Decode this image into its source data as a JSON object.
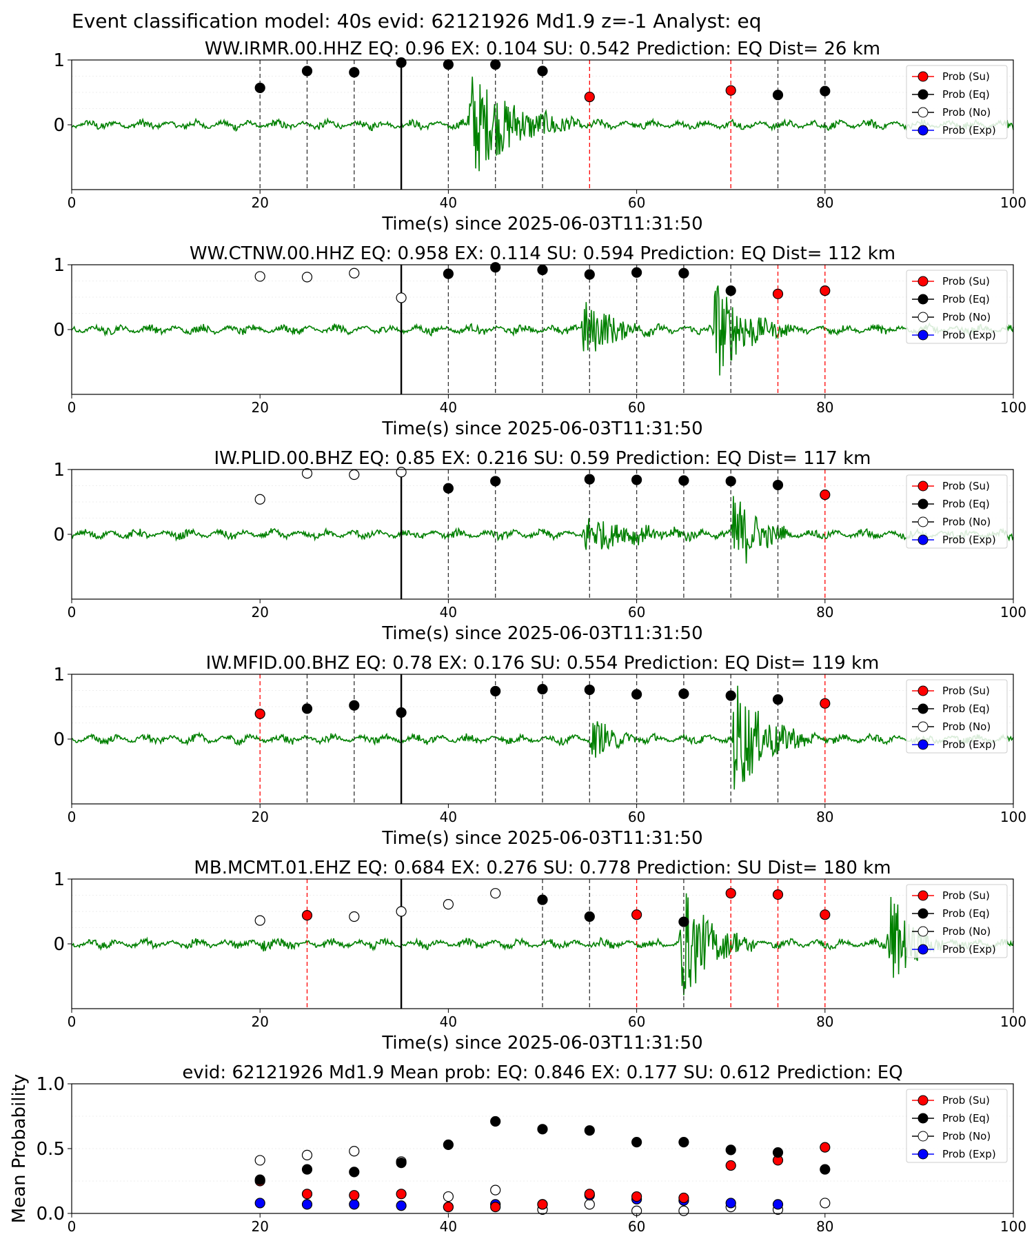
{
  "suptitle": "Event classification model: 40s evid: 62121926 Md1.9 z=-1 Analyst: eq",
  "legend_labels": [
    "Prob (Su)",
    "Prob (Eq)",
    "Prob (No)",
    "Prob (Exp)"
  ],
  "colors": {
    "su": "#ff0000",
    "eq": "#000000",
    "no": "#ffffff",
    "exp": "#0000ff",
    "waveform": "#008000",
    "grid": "#dddddd"
  },
  "chart_data": [
    {
      "type": "scatter",
      "title": "WW.IRMR.00.HHZ   EQ: 0.96  EX: 0.104  SU: 0.542   Prediction: EQ    Dist= 26 km",
      "xlabel": "Time(s) since 2025-06-03T11:31:50",
      "xlim": [
        0,
        100
      ],
      "ylim": [
        -1,
        1
      ],
      "xticks": [
        "0",
        "20",
        "40",
        "60",
        "80",
        "100"
      ],
      "yticks": [
        "1",
        "0"
      ],
      "reference_line_x": 35,
      "waveform_bursts": [
        {
          "t": 42,
          "amp": 0.95,
          "dur": 12
        }
      ],
      "points": [
        {
          "x": 20,
          "y": 0.57,
          "cls": "eq"
        },
        {
          "x": 25,
          "y": 0.83,
          "cls": "eq"
        },
        {
          "x": 30,
          "y": 0.81,
          "cls": "eq"
        },
        {
          "x": 35,
          "y": 0.96,
          "cls": "eq"
        },
        {
          "x": 40,
          "y": 0.93,
          "cls": "eq"
        },
        {
          "x": 45,
          "y": 0.93,
          "cls": "eq"
        },
        {
          "x": 50,
          "y": 0.83,
          "cls": "eq"
        },
        {
          "x": 55,
          "y": 0.43,
          "cls": "su"
        },
        {
          "x": 70,
          "y": 0.53,
          "cls": "su"
        },
        {
          "x": 75,
          "y": 0.46,
          "cls": "eq"
        },
        {
          "x": 80,
          "y": 0.52,
          "cls": "eq"
        }
      ]
    },
    {
      "type": "scatter",
      "title": "WW.CTNW.00.HHZ   EQ: 0.958  EX: 0.114  SU: 0.594   Prediction: EQ    Dist= 112 km",
      "xlabel": "Time(s) since 2025-06-03T11:31:50",
      "xlim": [
        0,
        100
      ],
      "ylim": [
        -1,
        1
      ],
      "xticks": [
        "0",
        "20",
        "40",
        "60",
        "80",
        "100"
      ],
      "yticks": [
        "1",
        "0"
      ],
      "reference_line_x": 35,
      "waveform_bursts": [
        {
          "t": 54,
          "amp": 0.55,
          "dur": 8
        },
        {
          "t": 68,
          "amp": 0.95,
          "dur": 8
        }
      ],
      "points": [
        {
          "x": 20,
          "y": 0.82,
          "cls": "no"
        },
        {
          "x": 25,
          "y": 0.81,
          "cls": "no"
        },
        {
          "x": 30,
          "y": 0.87,
          "cls": "no"
        },
        {
          "x": 35,
          "y": 0.49,
          "cls": "no"
        },
        {
          "x": 40,
          "y": 0.86,
          "cls": "eq"
        },
        {
          "x": 45,
          "y": 0.96,
          "cls": "eq"
        },
        {
          "x": 50,
          "y": 0.92,
          "cls": "eq"
        },
        {
          "x": 55,
          "y": 0.85,
          "cls": "eq"
        },
        {
          "x": 60,
          "y": 0.88,
          "cls": "eq"
        },
        {
          "x": 65,
          "y": 0.87,
          "cls": "eq"
        },
        {
          "x": 70,
          "y": 0.6,
          "cls": "eq"
        },
        {
          "x": 75,
          "y": 0.55,
          "cls": "su"
        },
        {
          "x": 80,
          "y": 0.6,
          "cls": "su"
        }
      ]
    },
    {
      "type": "scatter",
      "title": "IW.PLID.00.BHZ   EQ: 0.85  EX: 0.216  SU: 0.59   Prediction: EQ    Dist= 117 km",
      "xlabel": "Time(s) since 2025-06-03T11:31:50",
      "xlim": [
        0,
        100
      ],
      "ylim": [
        -1,
        1
      ],
      "xticks": [
        "0",
        "20",
        "40",
        "60",
        "80",
        "100"
      ],
      "yticks": [
        "1",
        "0"
      ],
      "reference_line_x": 35,
      "waveform_bursts": [
        {
          "t": 54,
          "amp": 0.3,
          "dur": 14
        },
        {
          "t": 70,
          "amp": 0.9,
          "dur": 6
        }
      ],
      "points": [
        {
          "x": 20,
          "y": 0.54,
          "cls": "no"
        },
        {
          "x": 25,
          "y": 0.94,
          "cls": "no"
        },
        {
          "x": 30,
          "y": 0.92,
          "cls": "no"
        },
        {
          "x": 35,
          "y": 0.96,
          "cls": "no"
        },
        {
          "x": 40,
          "y": 0.71,
          "cls": "eq"
        },
        {
          "x": 45,
          "y": 0.82,
          "cls": "eq"
        },
        {
          "x": 55,
          "y": 0.85,
          "cls": "eq"
        },
        {
          "x": 60,
          "y": 0.84,
          "cls": "eq"
        },
        {
          "x": 65,
          "y": 0.83,
          "cls": "eq"
        },
        {
          "x": 70,
          "y": 0.82,
          "cls": "eq"
        },
        {
          "x": 75,
          "y": 0.76,
          "cls": "eq"
        },
        {
          "x": 80,
          "y": 0.61,
          "cls": "su"
        }
      ]
    },
    {
      "type": "scatter",
      "title": "IW.MFID.00.BHZ   EQ: 0.78  EX: 0.176  SU: 0.554   Prediction: EQ    Dist= 119 km",
      "xlabel": "Time(s) since 2025-06-03T11:31:50",
      "xlim": [
        0,
        100
      ],
      "ylim": [
        -1,
        1
      ],
      "xticks": [
        "0",
        "20",
        "40",
        "60",
        "80",
        "100"
      ],
      "yticks": [
        "1",
        "0"
      ],
      "reference_line_x": 35,
      "waveform_bursts": [
        {
          "t": 55,
          "amp": 0.35,
          "dur": 6
        },
        {
          "t": 70,
          "amp": 1.0,
          "dur": 9
        }
      ],
      "points": [
        {
          "x": 20,
          "y": 0.39,
          "cls": "su"
        },
        {
          "x": 25,
          "y": 0.47,
          "cls": "eq"
        },
        {
          "x": 30,
          "y": 0.52,
          "cls": "eq"
        },
        {
          "x": 35,
          "y": 0.41,
          "cls": "eq"
        },
        {
          "x": 45,
          "y": 0.74,
          "cls": "eq"
        },
        {
          "x": 50,
          "y": 0.77,
          "cls": "eq"
        },
        {
          "x": 55,
          "y": 0.76,
          "cls": "eq"
        },
        {
          "x": 60,
          "y": 0.69,
          "cls": "eq"
        },
        {
          "x": 65,
          "y": 0.7,
          "cls": "eq"
        },
        {
          "x": 70,
          "y": 0.67,
          "cls": "eq"
        },
        {
          "x": 75,
          "y": 0.61,
          "cls": "eq"
        },
        {
          "x": 80,
          "y": 0.55,
          "cls": "su"
        }
      ]
    },
    {
      "type": "scatter",
      "title": "MB.MCMT.01.EHZ   EQ: 0.684  EX: 0.276  SU: 0.778   Prediction: SU    Dist= 180 km",
      "xlabel": "Time(s) since 2025-06-03T11:31:50",
      "xlim": [
        0,
        100
      ],
      "ylim": [
        -1,
        1
      ],
      "xticks": [
        "0",
        "20",
        "40",
        "60",
        "80",
        "100"
      ],
      "yticks": [
        "1",
        "0"
      ],
      "reference_line_x": 35,
      "waveform_bursts": [
        {
          "t": 20,
          "amp": 0.15,
          "dur": 2
        },
        {
          "t": 64.5,
          "amp": 1.0,
          "dur": 8
        },
        {
          "t": 86.5,
          "amp": 1.0,
          "dur": 6
        }
      ],
      "points": [
        {
          "x": 20,
          "y": 0.36,
          "cls": "no"
        },
        {
          "x": 25,
          "y": 0.44,
          "cls": "su"
        },
        {
          "x": 30,
          "y": 0.42,
          "cls": "no"
        },
        {
          "x": 35,
          "y": 0.5,
          "cls": "no"
        },
        {
          "x": 40,
          "y": 0.61,
          "cls": "no"
        },
        {
          "x": 45,
          "y": 0.78,
          "cls": "no"
        },
        {
          "x": 50,
          "y": 0.68,
          "cls": "eq"
        },
        {
          "x": 55,
          "y": 0.42,
          "cls": "eq"
        },
        {
          "x": 60,
          "y": 0.45,
          "cls": "su"
        },
        {
          "x": 65,
          "y": 0.34,
          "cls": "eq"
        },
        {
          "x": 70,
          "y": 0.78,
          "cls": "su"
        },
        {
          "x": 75,
          "y": 0.76,
          "cls": "su"
        },
        {
          "x": 80,
          "y": 0.45,
          "cls": "su"
        }
      ]
    },
    {
      "type": "scatter",
      "title": "evid: 62121926  Md1.9   Mean prob:   EQ: 0.846  EX: 0.177  SU: 0.612   Prediction: EQ",
      "ylabel": "Mean Probability",
      "xlim": [
        0,
        100
      ],
      "ylim": [
        0,
        1
      ],
      "xticks": [
        "0",
        "20",
        "40",
        "60",
        "80",
        "100"
      ],
      "yticks": [
        "1.0",
        "0.5",
        "0.0"
      ],
      "x": [
        20,
        25,
        30,
        35,
        40,
        45,
        50,
        55,
        60,
        65,
        70,
        75,
        80
      ],
      "series": [
        {
          "name": "Prob (No)",
          "cls": "no",
          "values": [
            0.41,
            0.45,
            0.48,
            0.4,
            0.13,
            0.18,
            0.03,
            0.07,
            0.02,
            0.02,
            0.05,
            0.03,
            0.08
          ]
        },
        {
          "name": "Prob (Exp)",
          "cls": "exp",
          "values": [
            0.08,
            0.07,
            0.07,
            0.06,
            0.05,
            0.07,
            0.07,
            0.14,
            0.11,
            0.1,
            0.08,
            0.07,
            null
          ]
        },
        {
          "name": "Prob (Su)",
          "cls": "su",
          "values": [
            0.25,
            0.15,
            0.14,
            0.15,
            0.05,
            0.05,
            0.07,
            0.15,
            0.13,
            0.12,
            0.37,
            0.41,
            0.51
          ]
        },
        {
          "name": "Prob (Eq)",
          "cls": "eq",
          "values": [
            0.26,
            0.34,
            0.32,
            0.39,
            0.53,
            0.71,
            0.65,
            0.64,
            0.55,
            0.55,
            0.49,
            0.47,
            0.34
          ]
        }
      ]
    }
  ]
}
